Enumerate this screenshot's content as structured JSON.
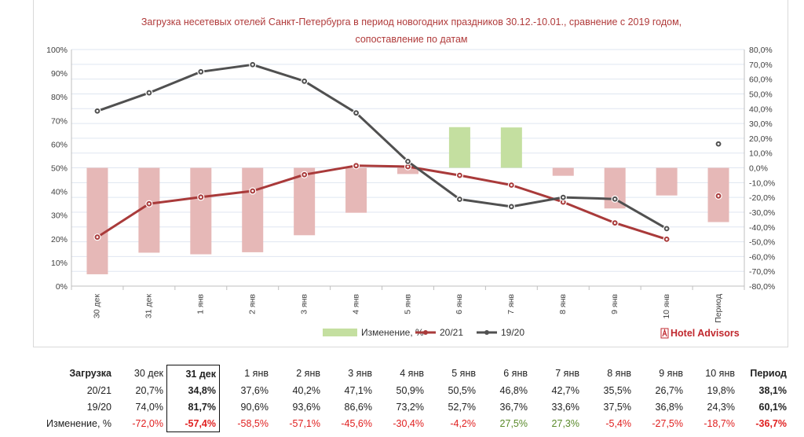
{
  "chart_data": {
    "type": "combo",
    "title": "Загрузка несетевых отелей Санкт-Петербурга в период новогодних праздников 30.12.-10.01., сравнение с 2019 годом,",
    "subtitle": "сопоставление по датам",
    "categories": [
      "30 дек",
      "31 дек",
      "1 янв",
      "2 янв",
      "3 янв",
      "4 янв",
      "5 янв",
      "6 янв",
      "7 янв",
      "8 янв",
      "9 янв",
      "10 янв",
      "Период"
    ],
    "y_left": {
      "min": 0,
      "max": 100,
      "step": 10,
      "ticks": [
        "0%",
        "10%",
        "20%",
        "30%",
        "40%",
        "50%",
        "60%",
        "70%",
        "80%",
        "90%",
        "100%"
      ]
    },
    "y_right": {
      "min": -80,
      "max": 80,
      "step": 10,
      "ticks": [
        "-80,0%",
        "-70,0%",
        "-60,0%",
        "-50,0%",
        "-40,0%",
        "-30,0%",
        "-20,0%",
        "-10,0%",
        "0,0%",
        "10,0%",
        "20,0%",
        "30,0%",
        "40,0%",
        "50,0%",
        "60,0%",
        "70,0%",
        "80,0%"
      ]
    },
    "series": [
      {
        "name": "Изменение, %",
        "kind": "bar",
        "axis": "right",
        "values": [
          -72.0,
          -57.4,
          -58.5,
          -57.1,
          -45.6,
          -30.4,
          -4.2,
          27.5,
          27.3,
          -5.4,
          -27.5,
          -18.7,
          -36.7
        ],
        "color_negative": "#e6b8b7",
        "color_positive": "#c4dfa0"
      },
      {
        "name": "20/21",
        "kind": "line",
        "axis": "left",
        "values": [
          20.7,
          34.8,
          37.6,
          40.2,
          47.1,
          50.9,
          50.5,
          46.8,
          42.7,
          35.5,
          26.7,
          19.8,
          38.1
        ],
        "color": "#a93a3a",
        "connect_last": false
      },
      {
        "name": "19/20",
        "kind": "line",
        "axis": "left",
        "values": [
          74.0,
          81.7,
          90.6,
          93.6,
          86.6,
          73.2,
          52.7,
          36.7,
          33.6,
          37.5,
          36.8,
          24.3,
          60.1
        ],
        "color": "#505050",
        "connect_last": false
      }
    ],
    "legend": {
      "position": "bottom",
      "labels": [
        "Изменение, %",
        "20/21",
        "19/20"
      ]
    },
    "grid": true
  },
  "brand": {
    "name": "Hotel Advisors",
    "color": "#c0272d"
  },
  "table": {
    "header": {
      "label": "Загрузка",
      "cells": [
        "30 дек",
        "31 дек",
        "1 янв",
        "2 янв",
        "3 янв",
        "4 янв",
        "5 янв",
        "6 янв",
        "7 янв",
        "8 янв",
        "9 янв",
        "10 янв",
        "Период"
      ]
    },
    "rows": [
      {
        "label": "20/21",
        "cells": [
          "20,7%",
          "34,8%",
          "37,6%",
          "40,2%",
          "47,1%",
          "50,9%",
          "50,5%",
          "46,8%",
          "42,7%",
          "35,5%",
          "26,7%",
          "19,8%",
          "38,1%"
        ]
      },
      {
        "label": "19/20",
        "cells": [
          "74,0%",
          "81,7%",
          "90,6%",
          "93,6%",
          "86,6%",
          "73,2%",
          "52,7%",
          "36,7%",
          "33,6%",
          "37,5%",
          "36,8%",
          "24,3%",
          "60,1%"
        ]
      },
      {
        "label": "Изменение, %",
        "cells": [
          "-72,0%",
          "-57,4%",
          "-58,5%",
          "-57,1%",
          "-45,6%",
          "-30,4%",
          "-4,2%",
          "27,5%",
          "27,3%",
          "-5,4%",
          "-27,5%",
          "-18,7%",
          "-36,7%"
        ]
      }
    ],
    "highlight_column": "31 дек"
  }
}
